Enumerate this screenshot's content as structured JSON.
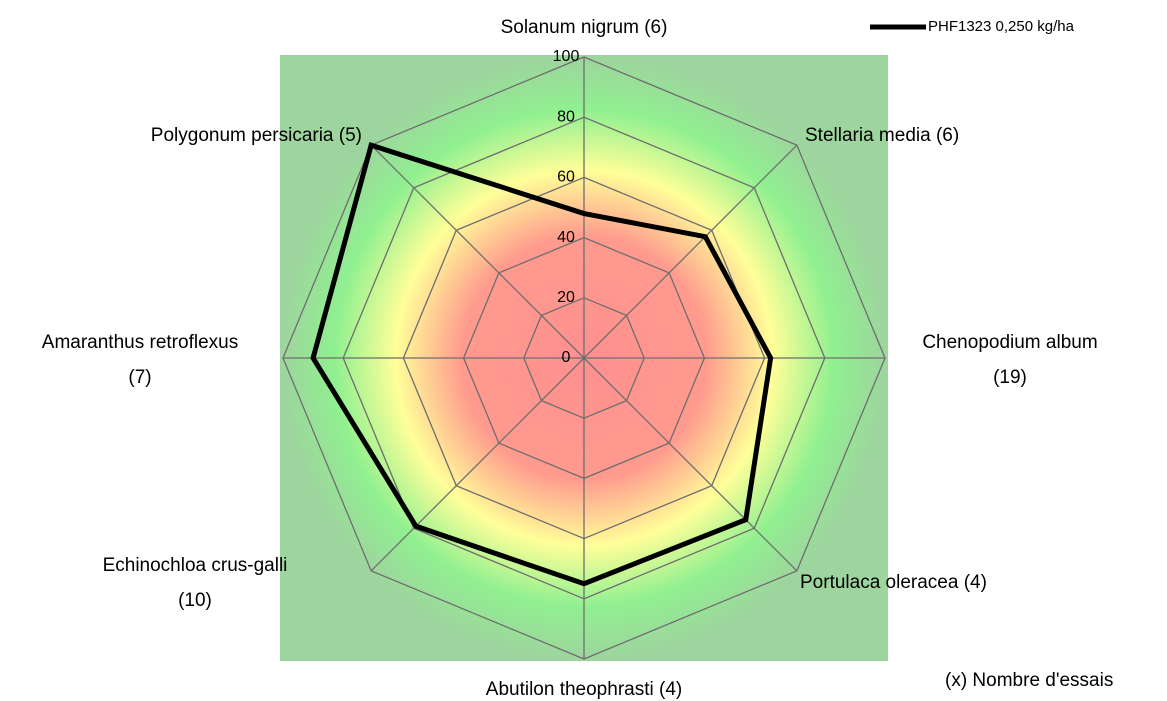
{
  "chart_data": {
    "type": "radar",
    "categories": [
      "Solanum nigrum (6)",
      "Stellaria media (6)",
      "Chenopodium album\n(19)",
      "Portulaca oleracea (4)",
      "Abutilon theophrasti (4)",
      "Echinochloa crus-galli\n(10)",
      "Amaranthus retroflexus\n(7)",
      "Polygonum persicaria (5)"
    ],
    "series": [
      {
        "name": "PHF1323 0,250 kg/ha",
        "color": "#000000",
        "values": [
          48,
          57,
          62,
          76,
          75,
          79,
          90,
          100
        ]
      }
    ],
    "ylim": [
      0,
      100
    ],
    "yticks": [
      0,
      20,
      40,
      60,
      80,
      100
    ],
    "grid": true,
    "legend": "top-right",
    "annotation": "(x) Nombre d'essais"
  }
}
